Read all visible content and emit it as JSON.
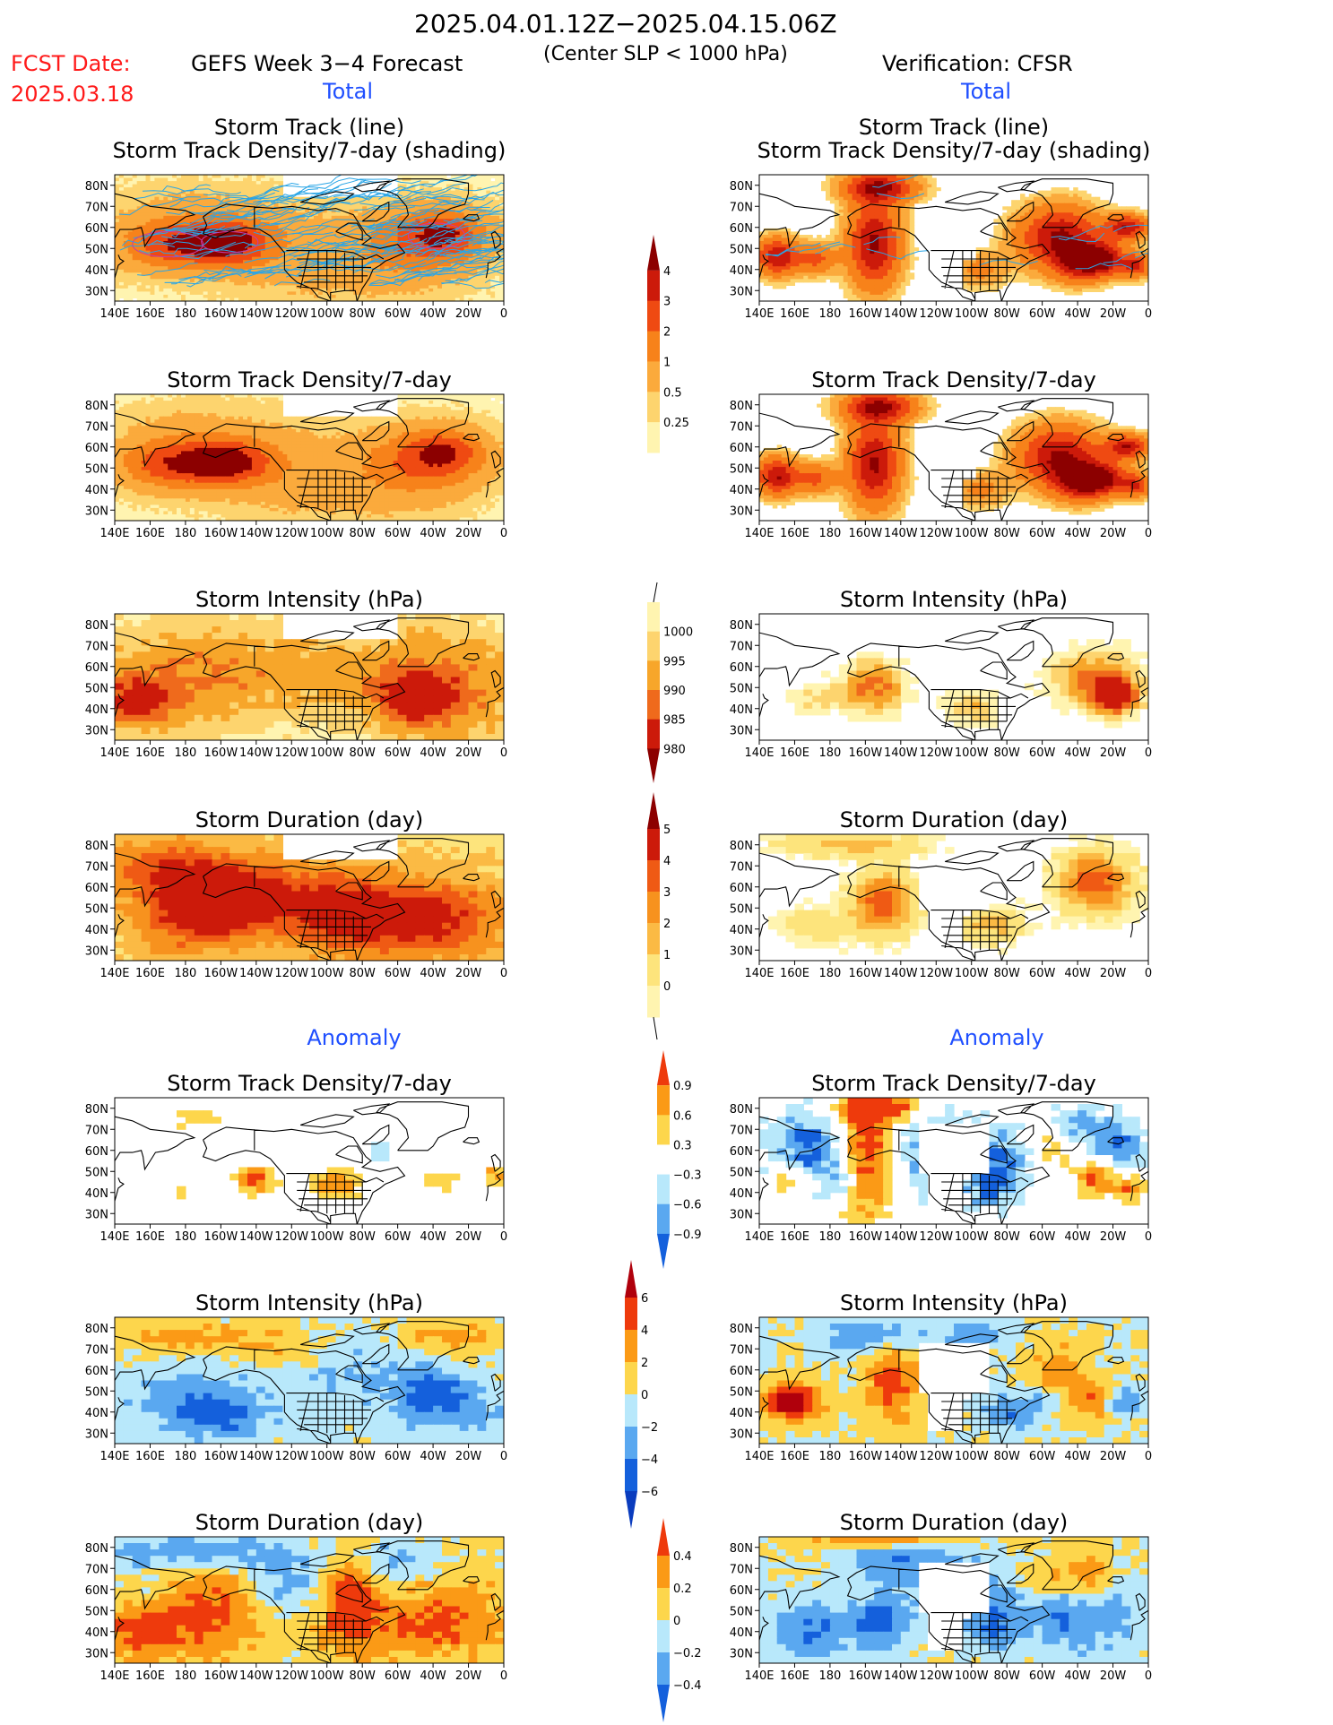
{
  "header": {
    "period": "2025.04.01.12Z−2025.04.15.06Z",
    "subtitle": "(Center SLP < 1000 hPa)",
    "fcst_label": "FCST Date:",
    "fcst_date": "2025.03.18",
    "left_title": "GEFS Week 3−4 Forecast",
    "right_title": "Verification: CFSR",
    "left_total": "Total",
    "right_total": "Total",
    "left_anomaly": "Anomaly",
    "right_anomaly": "Anomaly"
  },
  "colors": {
    "heading_red": "#ff1a1a",
    "section_blue": "#1f4fff",
    "ocean_white": "#ffffff",
    "coast": "#000000",
    "track_line": "#2aa5e6"
  },
  "axes": {
    "lon_ticks": [
      "140E",
      "160E",
      "180",
      "160W",
      "140W",
      "120W",
      "100W",
      "80W",
      "60W",
      "40W",
      "20W",
      "0"
    ],
    "lat_ticks": [
      "80N",
      "70N",
      "60N",
      "50N",
      "40N",
      "30N"
    ]
  },
  "colorbars": [
    {
      "name": "density-total",
      "ticks": [
        "4",
        "3",
        "2",
        "1",
        "0.5",
        "0.25"
      ],
      "colors": [
        "#8c0000",
        "#cc1a0a",
        "#ef4a12",
        "#f7821a",
        "#fbaa3c",
        "#fdd46e",
        "#fff4b0"
      ]
    },
    {
      "name": "intensity-total",
      "ticks": [
        "1000",
        "995",
        "990",
        "985",
        "980"
      ],
      "colors": [
        "#fff4b0",
        "#fdd46e",
        "#f7a62a",
        "#ef6a1c",
        "#cc1a0a",
        "#8c0000"
      ]
    },
    {
      "name": "duration-total",
      "ticks": [
        "5",
        "4",
        "3",
        "2",
        "1",
        "0"
      ],
      "colors": [
        "#8c0000",
        "#cc1a0a",
        "#ef5a14",
        "#f7921e",
        "#fbba44",
        "#fde47c",
        "#fff4b0"
      ]
    },
    {
      "name": "density-anom",
      "ticks": [
        "0.9",
        "0.6",
        "0.3",
        "−0.3",
        "−0.6",
        "−0.9"
      ],
      "colors": [
        "#ee3a0c",
        "#fb9a16",
        "#fdd64c",
        "#ffffff",
        "#b8e8fb",
        "#5aa8f0",
        "#1460dc"
      ]
    },
    {
      "name": "intensity-anom",
      "ticks": [
        "6",
        "4",
        "2",
        "0",
        "−2",
        "−4",
        "−6"
      ],
      "colors": [
        "#b0000c",
        "#ee3a0c",
        "#fb9a16",
        "#fdd64c",
        "#b8e8fb",
        "#5aa8f0",
        "#1460dc",
        "#0a3cbe"
      ]
    },
    {
      "name": "duration-anom",
      "ticks": [
        "0.4",
        "0.2",
        "0",
        "−0.2",
        "−0.4"
      ],
      "colors": [
        "#ee3a0c",
        "#fb9a16",
        "#fdd64c",
        "#b8e8fb",
        "#5aa8f0",
        "#1460dc"
      ]
    }
  ],
  "panels": [
    {
      "id": "l1",
      "title1": "Storm Track (line)",
      "title2": "Storm Track Density/7-day (shading)"
    },
    {
      "id": "r1",
      "title1": "Storm Track (line)",
      "title2": "Storm Track Density/7-day (shading)"
    },
    {
      "id": "l2",
      "title1": "Storm Track Density/7-day"
    },
    {
      "id": "r2",
      "title1": "Storm Track Density/7-day"
    },
    {
      "id": "l3",
      "title1": "Storm Intensity (hPa)"
    },
    {
      "id": "r3",
      "title1": "Storm Intensity (hPa)"
    },
    {
      "id": "l4",
      "title1": "Storm Duration (day)"
    },
    {
      "id": "r4",
      "title1": "Storm Duration (day)"
    },
    {
      "id": "l5",
      "title1": "Storm Track Density/7-day"
    },
    {
      "id": "r5",
      "title1": "Storm Track Density/7-day"
    },
    {
      "id": "l6",
      "title1": "Storm Intensity (hPa)"
    },
    {
      "id": "r6",
      "title1": "Storm Intensity (hPa)"
    },
    {
      "id": "l7",
      "title1": "Storm Duration (day)"
    },
    {
      "id": "r7",
      "title1": "Storm Duration (day)"
    }
  ],
  "chart_data": {
    "type": "heatmap",
    "grid_lon_range": [
      "140E",
      "0"
    ],
    "grid_lat_range": [
      "25N",
      "85N"
    ]
  }
}
